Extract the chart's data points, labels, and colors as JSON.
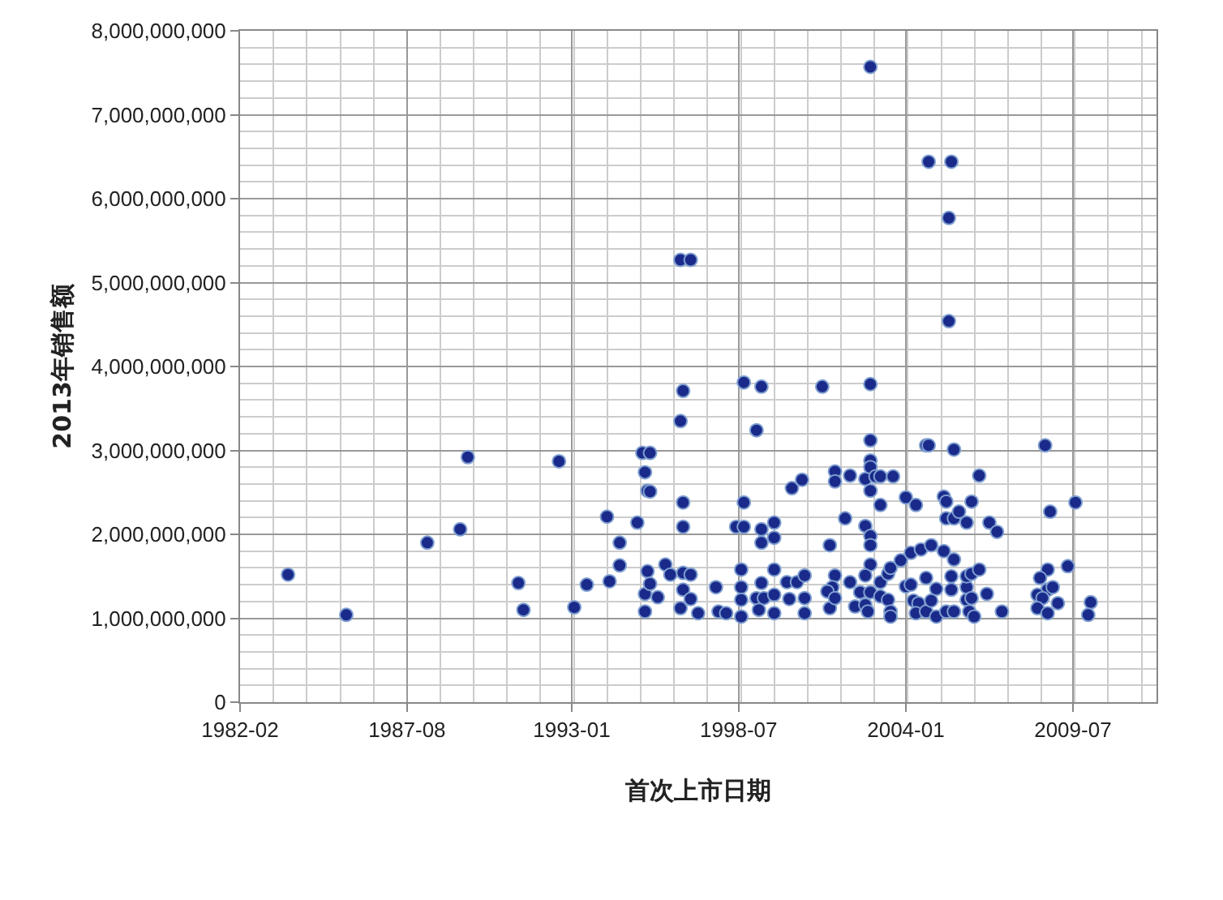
{
  "chart_data": {
    "type": "scatter",
    "xlabel": "首次上市日期",
    "ylabel": "2013年销售额",
    "marker": "circle",
    "grid": true,
    "xlim": [
      "1982-02",
      "2012-04"
    ],
    "xticks": [
      "1982-02",
      "1987-08",
      "1993-01",
      "1998-07",
      "2004-01",
      "2009-07"
    ],
    "ylim": [
      0,
      8000000000
    ],
    "yticks": [
      {
        "value": 0,
        "label": "0"
      },
      {
        "value": 1000000000,
        "label": "1,000,000,000"
      },
      {
        "value": 2000000000,
        "label": "2,000,000,000"
      },
      {
        "value": 3000000000,
        "label": "3,000,000,000"
      },
      {
        "value": 4000000000,
        "label": "4,000,000,000"
      },
      {
        "value": 5000000000,
        "label": "5,000,000,000"
      },
      {
        "value": 6000000000,
        "label": "6,000,000,000"
      },
      {
        "value": 7000000000,
        "label": "7,000,000,000"
      },
      {
        "value": 8000000000,
        "label": "8,000,000,000"
      }
    ],
    "series": [
      {
        "color": "#1a2a8a",
        "x": [
          "1983-09",
          "1985-08",
          "1988-04",
          "1989-05",
          "1989-08",
          "1991-04",
          "1991-06",
          "1992-08",
          "1993-02",
          "1993-07",
          "1994-03",
          "1994-04",
          "1994-08",
          "1994-08",
          "1995-03",
          "1995-05",
          "1995-08",
          "1995-06",
          "1995-07",
          "1995-08",
          "1995-06",
          "1995-06",
          "1995-07",
          "1995-08",
          "1995-11",
          "1996-02",
          "1996-04",
          "1996-08",
          "1996-12",
          "1996-09",
          "1996-08",
          "1996-09",
          "1996-09",
          "1996-09",
          "1996-12",
          "1996-09",
          "1996-12",
          "1996-08",
          "1997-03",
          "1997-10",
          "1997-11",
          "1998-02",
          "1998-09",
          "1999-04",
          "1999-02",
          "1998-09",
          "1998-06",
          "1998-09",
          "1998-08",
          "1998-08",
          "1998-08",
          "1998-08",
          "1999-04",
          "1999-09",
          "1999-04",
          "1999-09",
          "1999-04",
          "1999-02",
          "1999-05",
          "1999-03",
          "1999-09",
          "1999-09",
          "1999-09",
          "2000-02",
          "2000-06",
          "2000-03",
          "2000-09",
          "2000-09",
          "2000-09",
          "2000-04",
          "2000-08",
          "2001-04",
          "2001-09",
          "2001-09",
          "2002-03",
          "2002-01",
          "2001-07",
          "2001-09",
          "2001-08",
          "2001-06",
          "2001-07",
          "2001-09",
          "2002-03",
          "2002-11",
          "2002-11",
          "2002-11",
          "2002-11",
          "2002-11",
          "2002-09",
          "2003-01",
          "2002-11",
          "2002-09",
          "2002-11",
          "2002-11",
          "2002-11",
          "2002-09",
          "2002-07",
          "2002-11",
          "2002-05",
          "2002-09",
          "2002-10",
          "2003-03",
          "2003-08",
          "2003-03",
          "2003-03",
          "2003-06",
          "2003-07",
          "2003-03",
          "2003-06",
          "2003-07",
          "2003-07",
          "2004-01",
          "2004-05",
          "2003-11",
          "2004-03",
          "2004-07",
          "2004-01",
          "2004-03",
          "2004-04",
          "2004-06",
          "2004-05",
          "2004-09",
          "2004-09",
          "2004-10",
          "2004-10",
          "2005-07",
          "2005-06",
          "2005-06",
          "2005-08",
          "2004-11",
          "2005-04",
          "2004-09",
          "2005-01",
          "2004-11",
          "2005-01",
          "2005-04",
          "2005-05",
          "2005-05",
          "2005-08",
          "2005-10",
          "2006-01",
          "2005-08",
          "2005-07",
          "2005-07",
          "2005-05",
          "2005-08",
          "2006-01",
          "2006-01",
          "2006-03",
          "2006-06",
          "2006-01",
          "2006-03",
          "2006-02",
          "2006-04",
          "2006-03",
          "2006-06",
          "2006-10",
          "2007-01",
          "2006-09",
          "2007-03",
          "2008-08",
          "2008-10",
          "2009-08",
          "2009-05",
          "2008-09",
          "2008-06",
          "2008-09",
          "2008-11",
          "2008-05",
          "2008-07",
          "2009-01",
          "2008-05",
          "2008-09",
          "2010-02",
          "2010-01"
        ],
        "values": [
          1520000000,
          1040000000,
          1900000000,
          2060000000,
          2920000000,
          1420000000,
          1100000000,
          2870000000,
          1130000000,
          1400000000,
          2210000000,
          1440000000,
          1900000000,
          1630000000,
          2140000000,
          2970000000,
          2970000000,
          2740000000,
          2520000000,
          2510000000,
          1080000000,
          1290000000,
          1560000000,
          1410000000,
          1250000000,
          1640000000,
          1520000000,
          5270000000,
          5270000000,
          3710000000,
          3350000000,
          2380000000,
          2090000000,
          1540000000,
          1520000000,
          1340000000,
          1230000000,
          1120000000,
          1060000000,
          1370000000,
          1080000000,
          1060000000,
          3810000000,
          3760000000,
          3240000000,
          2380000000,
          2090000000,
          2090000000,
          1580000000,
          1370000000,
          1220000000,
          1020000000,
          2060000000,
          2140000000,
          1900000000,
          1960000000,
          1420000000,
          1240000000,
          1240000000,
          1100000000,
          1580000000,
          1280000000,
          1060000000,
          1430000000,
          1430000000,
          1230000000,
          1510000000,
          1240000000,
          1060000000,
          2550000000,
          2650000000,
          3760000000,
          2750000000,
          2630000000,
          2700000000,
          2190000000,
          1870000000,
          1510000000,
          1370000000,
          1320000000,
          1120000000,
          1240000000,
          1430000000,
          7570000000,
          3790000000,
          3120000000,
          2880000000,
          2800000000,
          2660000000,
          2690000000,
          2520000000,
          2100000000,
          1980000000,
          1870000000,
          1640000000,
          1510000000,
          1310000000,
          1310000000,
          1140000000,
          1160000000,
          1080000000,
          2690000000,
          2690000000,
          2350000000,
          1430000000,
          1530000000,
          1600000000,
          1260000000,
          1220000000,
          1080000000,
          1020000000,
          2440000000,
          2350000000,
          1690000000,
          1780000000,
          1820000000,
          1380000000,
          1400000000,
          1210000000,
          1180000000,
          1060000000,
          1080000000,
          3060000000,
          3060000000,
          6440000000,
          6440000000,
          5770000000,
          4540000000,
          3010000000,
          1870000000,
          1800000000,
          1480000000,
          1350000000,
          1210000000,
          1020000000,
          2450000000,
          2390000000,
          2190000000,
          2190000000,
          2270000000,
          2140000000,
          1700000000,
          1500000000,
          1340000000,
          1080000000,
          1080000000,
          1370000000,
          1500000000,
          1530000000,
          1580000000,
          1220000000,
          1240000000,
          1080000000,
          1020000000,
          2390000000,
          2700000000,
          2140000000,
          2030000000,
          1290000000,
          1080000000,
          3060000000,
          2270000000,
          2380000000,
          1620000000,
          1580000000,
          1480000000,
          1340000000,
          1370000000,
          1280000000,
          1240000000,
          1180000000,
          1120000000,
          1060000000,
          1190000000,
          1040000000
        ]
      }
    ]
  }
}
